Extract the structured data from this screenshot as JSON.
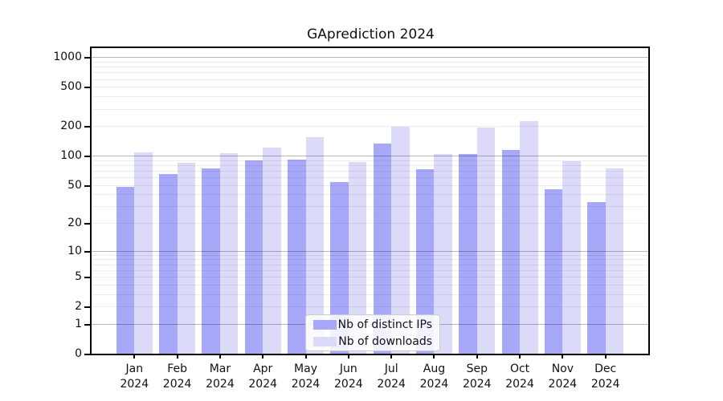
{
  "title": "GAprediction 2024",
  "chart_data": {
    "type": "bar",
    "title": "GAprediction 2024",
    "y_scale": "log1p",
    "grid": "both",
    "legend_position": "lower center",
    "xlabel": "",
    "ylabel": "",
    "categories": [
      "Jan 2024",
      "Feb 2024",
      "Mar 2024",
      "Apr 2024",
      "May 2024",
      "Jun 2024",
      "Jul 2024",
      "Aug 2024",
      "Sep 2024",
      "Oct 2024",
      "Nov 2024",
      "Dec 2024"
    ],
    "series": [
      {
        "name": "Nb of distinct IPs",
        "color": "#a8a8f8",
        "values": [
          48,
          65,
          74,
          89,
          92,
          54,
          134,
          72,
          104,
          115,
          45,
          33
        ]
      },
      {
        "name": "Nb of downloads",
        "color": "#dbdbf9",
        "values": [
          109,
          84,
          106,
          120,
          156,
          86,
          197,
          105,
          194,
          225,
          88,
          74
        ]
      }
    ],
    "y_ticks": [
      0,
      1,
      2,
      5,
      10,
      20,
      50,
      100,
      200,
      500,
      1000
    ],
    "y_minor_gridlines": [
      2,
      3,
      4,
      5,
      6,
      7,
      8,
      9,
      20,
      30,
      40,
      50,
      60,
      70,
      80,
      90,
      200,
      300,
      400,
      500,
      600,
      700,
      800,
      900
    ],
    "y_major_gridlines": [
      1,
      10,
      100,
      1000
    ],
    "ylim": [
      0,
      1300
    ]
  }
}
